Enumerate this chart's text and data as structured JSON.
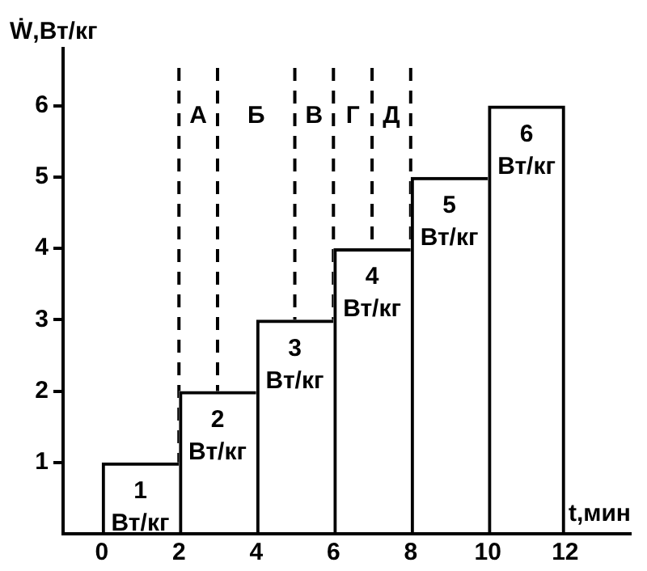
{
  "chart_data": {
    "type": "bar",
    "xlabel": "t,мин",
    "ylabel": "Ẇ,Вт/кг",
    "x": [
      1,
      3,
      5,
      7,
      9,
      11
    ],
    "values": [
      1,
      2,
      3,
      4,
      5,
      6
    ],
    "value_labels": [
      "1 Вт/кг",
      "2 Вт/кг",
      "3 Вт/кг",
      "4 Вт/кг",
      "5 Вт/кг",
      "6 Вт/кг"
    ],
    "color": "#000000",
    "xlim": [
      -1,
      13.7
    ],
    "xticks": [
      0,
      2,
      4,
      6,
      8,
      10,
      12
    ],
    "ylim": [
      0,
      6.8
    ],
    "yticks": [
      1,
      2,
      3,
      4,
      5,
      6
    ],
    "grid": false,
    "legend": false,
    "ref_lines": [
      {
        "axis": "x",
        "value": 2,
        "line_style": "dashed",
        "color": "#000000"
      },
      {
        "axis": "x",
        "value": 3,
        "line_style": "dashed",
        "color": "#000000"
      },
      {
        "axis": "x",
        "value": 5,
        "line_style": "dashed",
        "color": "#000000"
      },
      {
        "axis": "x",
        "value": 6,
        "line_style": "dashed",
        "color": "#000000"
      },
      {
        "axis": "x",
        "value": 7,
        "line_style": "dashed",
        "color": "#000000"
      },
      {
        "axis": "x",
        "value": 8,
        "line_style": "dashed",
        "color": "#000000"
      }
    ],
    "annotations": [
      "А",
      "Б",
      "В",
      "Г",
      "Д"
    ]
  }
}
